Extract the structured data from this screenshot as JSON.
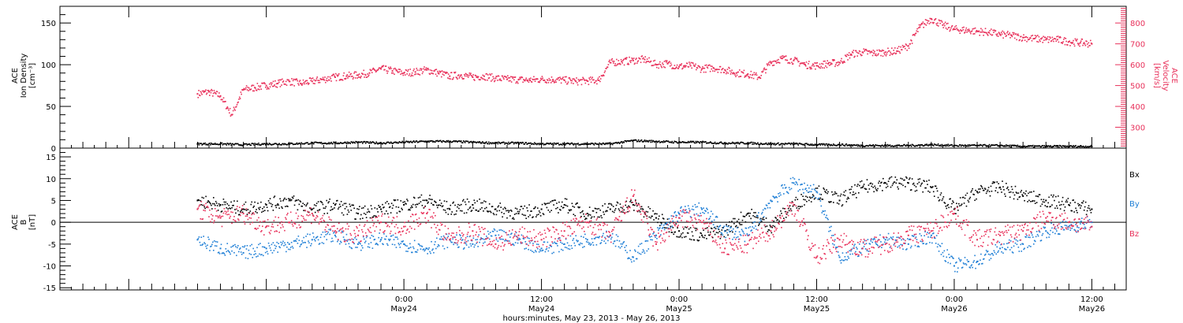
{
  "colors": {
    "black": "#000000",
    "pink": "#e8305a",
    "blue": "#1f7fd6"
  },
  "xaxis": {
    "label": "hours:minutes, May 23, 2013 - May 26, 2013",
    "range_hours": [
      -6,
      87
    ],
    "ticks": [
      {
        "hour": 24,
        "time": "0:00",
        "date": "May24"
      },
      {
        "hour": 36,
        "time": "12:00",
        "date": "May24"
      },
      {
        "hour": 48,
        "time": "0:00",
        "date": "May25"
      },
      {
        "hour": 60,
        "time": "12:00",
        "date": "May25"
      },
      {
        "hour": 72,
        "time": "0:00",
        "date": "May26"
      },
      {
        "hour": 84,
        "time": "12:00",
        "date": "May26"
      }
    ]
  },
  "chart_data": [
    {
      "type": "scatter",
      "panel": "top",
      "ylabel_lines": [
        "ACE",
        "Ion Density",
        "[cm⁻³]"
      ],
      "ylim": [
        0,
        170
      ],
      "yticks": [
        0,
        50,
        100,
        150
      ],
      "y2label_lines": [
        "ACE",
        "Velocity",
        "[km/s]"
      ],
      "y2lim": [
        200,
        880
      ],
      "y2ticks": [
        300,
        400,
        500,
        600,
        700,
        800
      ],
      "series": [
        {
          "name": "Ion Density",
          "color": "#000000",
          "axis": "left",
          "x": [
            6,
            8,
            10,
            12,
            14,
            16,
            18,
            20,
            22,
            24,
            26,
            28,
            30,
            32,
            34,
            36,
            38,
            40,
            42,
            44,
            46,
            48,
            50,
            52,
            54,
            56,
            58,
            60,
            62,
            64,
            66,
            68,
            70,
            72,
            74,
            76,
            78,
            80,
            82,
            84
          ],
          "values": [
            5,
            5,
            4,
            5,
            5,
            6,
            6,
            7,
            6,
            7,
            8,
            8,
            7,
            6,
            6,
            5,
            5,
            5,
            5,
            9,
            8,
            7,
            7,
            6,
            6,
            5,
            5,
            4,
            4,
            3,
            3,
            3,
            4,
            3,
            3,
            3,
            2,
            2,
            2,
            2
          ]
        },
        {
          "name": "Velocity",
          "color": "#e8305a",
          "axis": "right",
          "x": [
            6,
            7,
            8,
            9,
            10,
            11,
            12,
            13,
            14,
            15,
            16,
            17,
            18,
            19,
            20,
            21,
            22,
            23,
            24,
            25,
            26,
            27,
            28,
            29,
            30,
            31,
            32,
            33,
            34,
            35,
            36,
            37,
            38,
            39,
            40,
            41,
            42,
            43,
            44,
            45,
            46,
            47,
            48,
            49,
            50,
            51,
            52,
            53,
            54,
            55,
            56,
            57,
            58,
            59,
            60,
            61,
            62,
            63,
            64,
            65,
            66,
            67,
            68,
            69,
            70,
            71,
            72,
            73,
            74,
            75,
            76,
            77,
            78,
            79,
            80,
            81,
            82,
            83,
            84
          ],
          "values": [
            460,
            470,
            450,
            360,
            480,
            490,
            500,
            510,
            520,
            510,
            520,
            530,
            540,
            545,
            550,
            560,
            580,
            570,
            560,
            565,
            575,
            560,
            545,
            550,
            540,
            545,
            535,
            530,
            528,
            525,
            530,
            528,
            525,
            520,
            522,
            525,
            610,
            615,
            620,
            625,
            600,
            605,
            590,
            595,
            580,
            585,
            575,
            560,
            555,
            540,
            610,
            630,
            620,
            600,
            595,
            605,
            610,
            650,
            660,
            655,
            660,
            665,
            690,
            780,
            820,
            790,
            770,
            765,
            760,
            755,
            745,
            740,
            730,
            725,
            720,
            720,
            710,
            705,
            700
          ]
        }
      ]
    },
    {
      "type": "scatter",
      "panel": "bottom",
      "ylabel_lines": [
        "ACE",
        "B",
        "[nT]"
      ],
      "ylim": [
        -15.5,
        17
      ],
      "yticks": [
        -15,
        -10,
        -5,
        0,
        5,
        10,
        15
      ],
      "series": [
        {
          "name": "Bx",
          "color": "#000000",
          "x": [
            6,
            8,
            10,
            12,
            14,
            16,
            18,
            20,
            22,
            24,
            26,
            28,
            30,
            32,
            34,
            36,
            38,
            40,
            42,
            44,
            46,
            48,
            50,
            52,
            54,
            56,
            58,
            60,
            62,
            64,
            66,
            68,
            70,
            72,
            74,
            76,
            78,
            80,
            82,
            84
          ],
          "values": [
            5,
            4,
            3,
            4,
            5,
            3,
            4,
            2,
            3,
            4,
            5,
            3,
            4,
            3,
            2,
            3,
            4,
            2,
            3,
            4,
            1,
            -2,
            -3,
            -2,
            2,
            -1,
            4,
            7,
            5,
            8,
            9,
            9,
            8,
            3,
            7,
            8,
            6,
            5,
            4,
            3
          ]
        },
        {
          "name": "By",
          "color": "#1f7fd6",
          "x": [
            6,
            8,
            10,
            12,
            14,
            16,
            18,
            20,
            22,
            24,
            26,
            28,
            30,
            32,
            34,
            36,
            38,
            40,
            42,
            44,
            46,
            48,
            50,
            52,
            54,
            56,
            58,
            60,
            62,
            64,
            66,
            68,
            70,
            72,
            74,
            76,
            78,
            80,
            82,
            84
          ],
          "values": [
            -4,
            -6,
            -7,
            -6,
            -5,
            -4,
            -3,
            -5,
            -4,
            -5,
            -6,
            -4,
            -5,
            -3,
            -4,
            -6,
            -5,
            -4,
            -3,
            -8,
            -3,
            2,
            3,
            -2,
            -3,
            5,
            9,
            7,
            -8,
            -6,
            -4,
            -5,
            -3,
            -10,
            -9,
            -6,
            -5,
            -2,
            -1,
            0
          ]
        },
        {
          "name": "Bz",
          "color": "#e8305a",
          "x": [
            6,
            8,
            10,
            12,
            14,
            16,
            18,
            20,
            22,
            24,
            26,
            28,
            30,
            32,
            34,
            36,
            38,
            40,
            42,
            44,
            46,
            48,
            50,
            52,
            54,
            56,
            58,
            60,
            62,
            64,
            66,
            68,
            70,
            72,
            74,
            76,
            78,
            80,
            82,
            84
          ],
          "values": [
            3,
            1,
            2,
            -1,
            0,
            2,
            -2,
            -3,
            0,
            -1,
            2,
            -4,
            -2,
            -5,
            -3,
            -4,
            -2,
            0,
            -3,
            6,
            -5,
            1,
            0,
            -6,
            -5,
            -2,
            4,
            -8,
            -4,
            -6,
            -5,
            -3,
            -2,
            2,
            -4,
            -3,
            -2,
            1,
            0,
            -1
          ]
        }
      ]
    }
  ]
}
